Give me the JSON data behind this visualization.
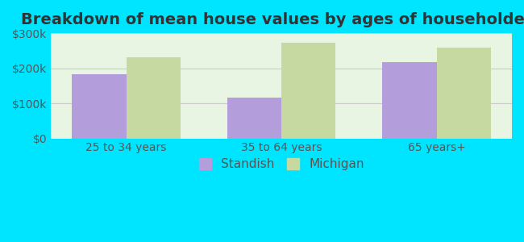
{
  "title": "Breakdown of mean house values by ages of householders",
  "categories": [
    "25 to 34 years",
    "35 to 64 years",
    "65 years+"
  ],
  "standish_values": [
    182000,
    117000,
    218000
  ],
  "michigan_values": [
    232000,
    272000,
    258000
  ],
  "standish_color": "#b39ddb",
  "michigan_color": "#c5d9a0",
  "background_outer": "#00e5ff",
  "background_inner_top": "#e8f5e9",
  "background_inner_bottom": "#ffffff",
  "ylim": [
    0,
    300000
  ],
  "yticks": [
    0,
    100000,
    200000,
    300000
  ],
  "ytick_labels": [
    "$0",
    "$100k",
    "$200k",
    "$300k"
  ],
  "bar_width": 0.35,
  "legend_labels": [
    "Standish",
    "Michigan"
  ],
  "title_fontsize": 14,
  "tick_fontsize": 10,
  "legend_fontsize": 11
}
